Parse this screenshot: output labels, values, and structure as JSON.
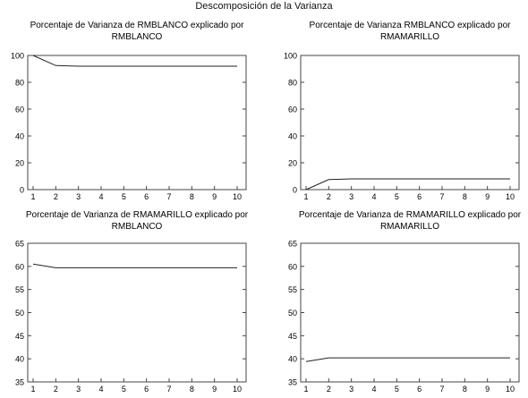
{
  "figure_title": "Descomposición de la Varianza",
  "chart_data": [
    {
      "type": "line",
      "title": "Porcentaje de Varianza de RMBLANCO explicado por RMBLANCO",
      "title_lines": [
        "Porcentaje de Varianza de RMBLANCO explicado por",
        "RMBLANCO"
      ],
      "x": [
        1,
        2,
        3,
        4,
        5,
        6,
        7,
        8,
        9,
        10
      ],
      "values": [
        100,
        92.5,
        92.0,
        92.0,
        92.0,
        92.0,
        92.0,
        92.0,
        92.0,
        92.0
      ],
      "ylim": [
        0,
        100
      ],
      "yticks": [
        0,
        20,
        40,
        60,
        80,
        100
      ],
      "xticks": [
        1,
        2,
        3,
        4,
        5,
        6,
        7,
        8,
        9,
        10
      ],
      "xlabel": "",
      "ylabel": "",
      "grid": false
    },
    {
      "type": "line",
      "title": "Porcentaje de Varianza RMBLANCO explicado por RMAMARILLO",
      "title_lines": [
        "Porcentaje de Varianza RMBLANCO explicado por",
        "RMAMARILLO"
      ],
      "x": [
        1,
        2,
        3,
        4,
        5,
        6,
        7,
        8,
        9,
        10
      ],
      "values": [
        0,
        7.5,
        8.0,
        8.0,
        8.0,
        8.0,
        8.0,
        8.0,
        8.0,
        8.0
      ],
      "ylim": [
        0,
        100
      ],
      "yticks": [
        0,
        20,
        40,
        60,
        80,
        100
      ],
      "xticks": [
        1,
        2,
        3,
        4,
        5,
        6,
        7,
        8,
        9,
        10
      ],
      "xlabel": "",
      "ylabel": "",
      "grid": false
    },
    {
      "type": "line",
      "title": "Porcentaje de Varianza de RMAMARILLO explicado por RMBLANCO",
      "title_lines": [
        "Porcentaje de Varianza de RMAMARILLO explicado por",
        "RMBLANCO"
      ],
      "x": [
        1,
        2,
        3,
        4,
        5,
        6,
        7,
        8,
        9,
        10
      ],
      "values": [
        60.5,
        59.7,
        59.7,
        59.7,
        59.7,
        59.7,
        59.7,
        59.7,
        59.7,
        59.7
      ],
      "ylim": [
        35,
        65
      ],
      "yticks": [
        35,
        40,
        45,
        50,
        55,
        60,
        65
      ],
      "xticks": [
        1,
        2,
        3,
        4,
        5,
        6,
        7,
        8,
        9,
        10
      ],
      "xlabel": "",
      "ylabel": "",
      "grid": false
    },
    {
      "type": "line",
      "title": "Porcentaje de Varianza de  RMAMARILLO explicado por RMAMARILLO",
      "title_lines": [
        "Porcentaje de Varianza de  RMAMARILLO explicado por",
        "RMAMARILLO"
      ],
      "x": [
        1,
        2,
        3,
        4,
        5,
        6,
        7,
        8,
        9,
        10
      ],
      "values": [
        39.4,
        40.2,
        40.2,
        40.2,
        40.2,
        40.2,
        40.2,
        40.2,
        40.2,
        40.2
      ],
      "ylim": [
        35,
        65
      ],
      "yticks": [
        35,
        40,
        45,
        50,
        55,
        60,
        65
      ],
      "xticks": [
        1,
        2,
        3,
        4,
        5,
        6,
        7,
        8,
        9,
        10
      ],
      "xlabel": "",
      "ylabel": "",
      "grid": false
    }
  ]
}
